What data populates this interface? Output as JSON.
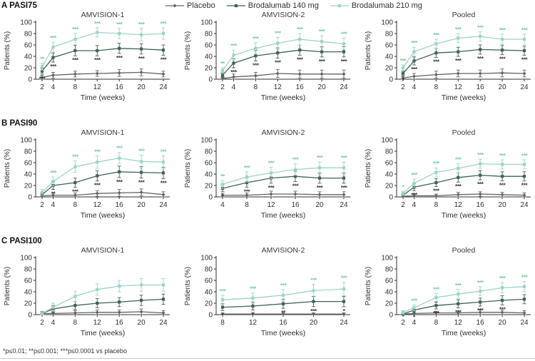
{
  "figure": {
    "footnote": "*p≤0.01; **p≤0.001; ***p≤0.0001 vs placebo"
  },
  "legend": {
    "position": "top",
    "items": [
      {
        "label": "Placebo",
        "color": "#636363",
        "marker": "diamond",
        "star_color": "",
        "star_pos": "none"
      },
      {
        "label": "Brodalumab 140 mg",
        "color": "#42605b",
        "marker": "square",
        "star_color": "#343d3b",
        "star_pos": "below"
      },
      {
        "label": "Brodalumab 210 mg",
        "color": "#9dd3c8",
        "marker": "square",
        "star_color": "#7cc5b6",
        "star_pos": "above"
      }
    ]
  },
  "sections": [
    {
      "label": "A PASI75"
    },
    {
      "label": "B PASI90"
    },
    {
      "label": "C PASI100"
    }
  ],
  "chart_data": [
    {
      "type": "line",
      "section": "A PASI75",
      "title": "AMVISION-1",
      "xlabel": "Time (weeks)",
      "ylabel": "Patients (%)",
      "ylim": [
        0,
        100
      ],
      "yticks": [
        0,
        20,
        40,
        60,
        80,
        100
      ],
      "x": [
        2,
        4,
        8,
        12,
        16,
        20,
        24
      ],
      "series": [
        {
          "name": "Placebo",
          "values": [
            3,
            7,
            9,
            10,
            11,
            12,
            9
          ],
          "err": [
            4,
            5,
            5,
            5,
            6,
            6,
            5
          ]
        },
        {
          "name": "Brodalumab 140 mg",
          "values": [
            14,
            38,
            50,
            50,
            54,
            53,
            51
          ],
          "err": [
            5,
            8,
            9,
            9,
            9,
            9,
            9
          ],
          "stars": [
            "***",
            "***",
            "***",
            "***",
            "***",
            "***",
            "***"
          ]
        },
        {
          "name": "Brodalumab 210 mg",
          "values": [
            22,
            56,
            70,
            82,
            80,
            78,
            80
          ],
          "err": [
            6,
            9,
            10,
            8,
            9,
            11,
            10
          ],
          "stars": [
            "**",
            "***",
            "***",
            "***",
            "***",
            "***",
            "***"
          ]
        }
      ]
    },
    {
      "type": "line",
      "section": "A PASI75",
      "title": "AMVISION-2",
      "xlabel": "Time (weeks)",
      "ylabel": "Patients (%)",
      "ylim": [
        0,
        100
      ],
      "yticks": [
        0,
        20,
        40,
        60,
        80,
        100
      ],
      "x": [
        2,
        4,
        8,
        12,
        16,
        20,
        24
      ],
      "series": [
        {
          "name": "Placebo",
          "values": [
            1,
            4,
            6,
            10,
            9,
            9,
            9
          ],
          "err": [
            3,
            5,
            6,
            7,
            7,
            7,
            7
          ]
        },
        {
          "name": "Brodalumab 140 mg",
          "values": [
            7,
            28,
            41,
            46,
            51,
            48,
            48
          ],
          "err": [
            4,
            8,
            9,
            9,
            9,
            9,
            9
          ],
          "stars": [
            "",
            "***",
            "***",
            "***",
            "***",
            "***",
            "***"
          ]
        },
        {
          "name": "Brodalumab 210 mg",
          "values": [
            15,
            42,
            54,
            63,
            70,
            66,
            62
          ],
          "err": [
            5,
            9,
            10,
            10,
            10,
            10,
            10
          ],
          "stars": [
            "**",
            "***",
            "***",
            "***",
            "***",
            "***",
            "***"
          ]
        }
      ]
    },
    {
      "type": "line",
      "section": "A PASI75",
      "title": "Pooled",
      "xlabel": "Time (weeks)",
      "ylabel": "Patients (%)",
      "ylim": [
        0,
        100
      ],
      "yticks": [
        0,
        20,
        40,
        60,
        80,
        100
      ],
      "x": [
        2,
        4,
        8,
        12,
        16,
        20,
        24
      ],
      "series": [
        {
          "name": "Placebo",
          "values": [
            2,
            5,
            8,
            10,
            10,
            11,
            10
          ],
          "err": [
            3,
            5,
            6,
            6,
            6,
            7,
            6
          ]
        },
        {
          "name": "Brodalumab 140 mg",
          "values": [
            10,
            32,
            46,
            48,
            52,
            51,
            50
          ],
          "err": [
            4,
            7,
            8,
            8,
            8,
            8,
            8
          ],
          "stars": [
            "*",
            "***",
            "***",
            "***",
            "***",
            "***",
            "***"
          ]
        },
        {
          "name": "Brodalumab 210 mg",
          "values": [
            20,
            48,
            62,
            72,
            75,
            70,
            70
          ],
          "err": [
            5,
            8,
            8,
            8,
            8,
            9,
            9
          ],
          "stars": [
            "***",
            "***",
            "***",
            "***",
            "***",
            "***",
            "***"
          ]
        }
      ]
    },
    {
      "type": "line",
      "section": "B PASI90",
      "title": "AMVISION-1",
      "xlabel": "Time (weeks)",
      "ylabel": "Patients (%)",
      "ylim": [
        0,
        100
      ],
      "yticks": [
        0,
        20,
        40,
        60,
        80,
        100
      ],
      "x": [
        2,
        4,
        8,
        12,
        16,
        20,
        24
      ],
      "series": [
        {
          "name": "Placebo",
          "values": [
            2,
            3,
            3,
            6,
            7,
            8,
            4
          ],
          "err": [
            3,
            4,
            4,
            5,
            6,
            6,
            5
          ]
        },
        {
          "name": "Brodalumab 140 mg",
          "values": [
            4,
            20,
            25,
            37,
            44,
            43,
            42
          ],
          "err": [
            4,
            7,
            8,
            9,
            10,
            10,
            10
          ],
          "stars": [
            "",
            "**",
            "***",
            "***",
            "***",
            "***",
            "***"
          ]
        },
        {
          "name": "Brodalumab 210 mg",
          "values": [
            8,
            27,
            53,
            61,
            68,
            62,
            61
          ],
          "err": [
            5,
            8,
            10,
            11,
            10,
            11,
            11
          ],
          "stars": [
            "",
            "***",
            "***",
            "***",
            "***",
            "***",
            "***"
          ]
        }
      ]
    },
    {
      "type": "line",
      "section": "B PASI90",
      "title": "AMVISION-2",
      "xlabel": "Time (weeks)",
      "ylabel": "Patients (%)",
      "ylim": [
        0,
        100
      ],
      "yticks": [
        0,
        20,
        40,
        60,
        80,
        100
      ],
      "x": [
        4,
        8,
        12,
        16,
        20,
        24
      ],
      "series": [
        {
          "name": "Placebo",
          "values": [
            3,
            3,
            5,
            5,
            4,
            4
          ],
          "err": [
            3,
            4,
            5,
            5,
            5,
            5
          ]
        },
        {
          "name": "Brodalumab 140 mg",
          "values": [
            15,
            25,
            33,
            36,
            33,
            33
          ],
          "err": [
            6,
            8,
            9,
            9,
            9,
            9
          ],
          "stars": [
            "*",
            "***",
            "***",
            "***",
            "***",
            "***"
          ]
        },
        {
          "name": "Brodalumab 210 mg",
          "values": [
            22,
            35,
            42,
            48,
            51,
            51
          ],
          "err": [
            7,
            9,
            10,
            10,
            10,
            10
          ],
          "stars": [
            "**",
            "***",
            "***",
            "***",
            "***",
            "***"
          ]
        }
      ]
    },
    {
      "type": "line",
      "section": "B PASI90",
      "title": "Pooled",
      "xlabel": "Time (weeks)",
      "ylabel": "Patients (%)",
      "ylim": [
        0,
        100
      ],
      "yticks": [
        0,
        20,
        40,
        60,
        80,
        100
      ],
      "x": [
        2,
        4,
        8,
        12,
        16,
        20,
        24
      ],
      "series": [
        {
          "name": "Placebo",
          "values": [
            1,
            2,
            2,
            4,
            5,
            4,
            3
          ],
          "err": [
            2,
            3,
            3,
            4,
            4,
            4,
            4
          ]
        },
        {
          "name": "Brodalumab 140 mg",
          "values": [
            3,
            17,
            25,
            34,
            38,
            36,
            36
          ],
          "err": [
            3,
            6,
            7,
            8,
            8,
            8,
            8
          ],
          "stars": [
            "",
            "***",
            "***",
            "***",
            "***",
            "***",
            "***"
          ]
        },
        {
          "name": "Brodalumab 210 mg",
          "values": [
            6,
            24,
            43,
            50,
            58,
            57,
            57
          ],
          "err": [
            4,
            7,
            8,
            8,
            8,
            8,
            8
          ],
          "stars": [
            "*",
            "***",
            "***",
            "***",
            "***",
            "***",
            "***"
          ]
        }
      ]
    },
    {
      "type": "line",
      "section": "C PASI100",
      "title": "AMVISION-1",
      "xlabel": "Time (weeks)",
      "ylabel": "Patients (%)",
      "ylim": [
        0,
        100
      ],
      "yticks": [
        0,
        20,
        40,
        60,
        80,
        100
      ],
      "x": [
        2,
        4,
        8,
        12,
        16,
        20,
        24
      ],
      "series": [
        {
          "name": "Placebo",
          "values": [
            2,
            2,
            3,
            4,
            4,
            5,
            3
          ],
          "err": [
            3,
            3,
            4,
            4,
            4,
            5,
            4
          ]
        },
        {
          "name": "Brodalumab 140 mg",
          "values": [
            2,
            10,
            16,
            20,
            22,
            25,
            27
          ],
          "err": [
            3,
            6,
            7,
            8,
            8,
            9,
            9
          ],
          "stars": [
            "",
            "",
            "",
            "",
            "",
            "",
            ""
          ]
        },
        {
          "name": "Brodalumab 210 mg",
          "values": [
            2,
            13,
            32,
            44,
            50,
            52,
            52
          ],
          "err": [
            4,
            7,
            9,
            10,
            10,
            11,
            11
          ],
          "stars": [
            "",
            "",
            "",
            "",
            "",
            "",
            ""
          ]
        }
      ]
    },
    {
      "type": "line",
      "section": "C PASI100",
      "title": "AMVISION-2",
      "xlabel": "Time (weeks)",
      "ylabel": "Patients (%)",
      "ylim": [
        0,
        100
      ],
      "yticks": [
        0,
        20,
        40,
        60,
        80,
        100
      ],
      "x": [
        8,
        12,
        16,
        20,
        24
      ],
      "series": [
        {
          "name": "Placebo",
          "values": [
            1,
            1,
            1,
            1,
            1
          ],
          "err": [
            2,
            2,
            2,
            2,
            2
          ]
        },
        {
          "name": "Brodalumab 140 mg",
          "values": [
            13,
            15,
            19,
            23,
            23
          ],
          "err": [
            6,
            7,
            8,
            9,
            9
          ],
          "stars": [
            "*",
            "*",
            "**",
            "***",
            "*"
          ]
        },
        {
          "name": "Brodalumab 210 mg",
          "values": [
            26,
            29,
            34,
            42,
            45
          ],
          "err": [
            8,
            9,
            10,
            11,
            12
          ],
          "stars": [
            "***",
            "***",
            "***",
            "***",
            "***"
          ]
        }
      ]
    },
    {
      "type": "line",
      "section": "C PASI100",
      "title": "Pooled",
      "xlabel": "Time (weeks)",
      "ylabel": "Patients (%)",
      "ylim": [
        0,
        100
      ],
      "yticks": [
        0,
        20,
        40,
        60,
        80,
        100
      ],
      "x": [
        2,
        4,
        8,
        12,
        16,
        20,
        24
      ],
      "series": [
        {
          "name": "Placebo",
          "values": [
            1,
            2,
            3,
            3,
            4,
            4,
            3
          ],
          "err": [
            2,
            3,
            3,
            3,
            4,
            4,
            4
          ]
        },
        {
          "name": "Brodalumab 140 mg",
          "values": [
            1,
            8,
            16,
            19,
            22,
            25,
            27
          ],
          "err": [
            2,
            5,
            6,
            7,
            7,
            8,
            8
          ],
          "stars": [
            "",
            "*",
            "***",
            "***",
            "***",
            "***",
            ""
          ]
        },
        {
          "name": "Brodalumab 210 mg",
          "values": [
            4,
            12,
            30,
            36,
            41,
            47,
            49
          ],
          "err": [
            3,
            5,
            7,
            8,
            8,
            9,
            9
          ],
          "stars": [
            "",
            "***",
            "***",
            "***",
            "***",
            "***",
            "***"
          ]
        }
      ]
    }
  ]
}
